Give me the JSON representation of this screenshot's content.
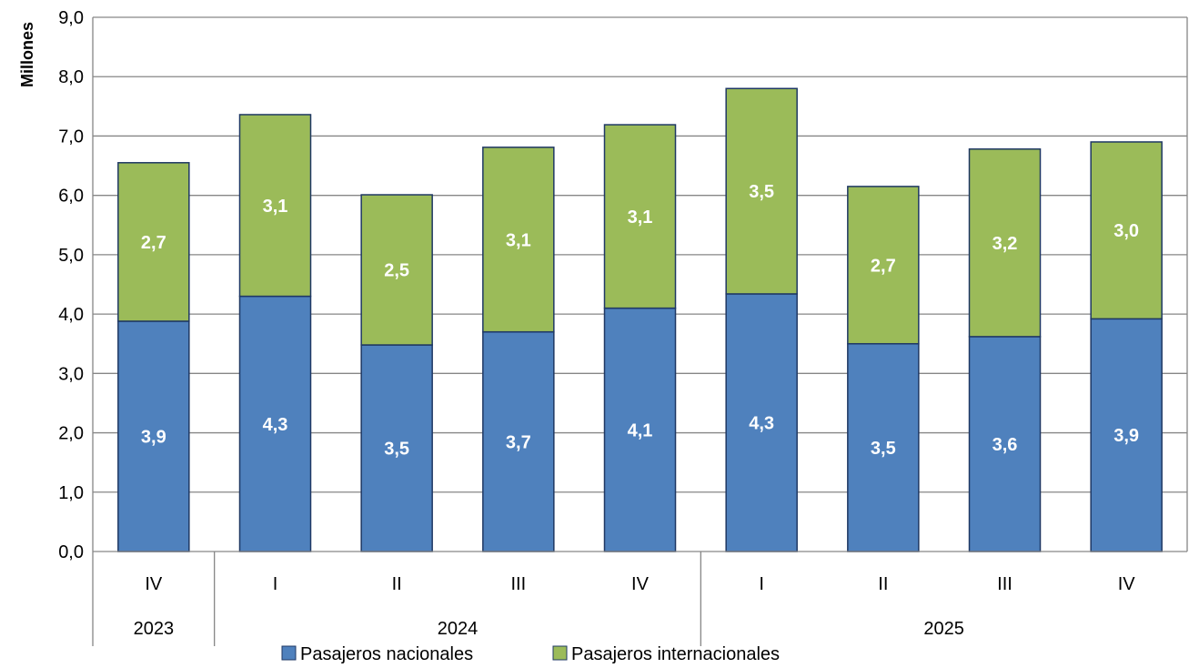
{
  "chart_data": {
    "type": "bar",
    "stacked": true,
    "title": "",
    "ylabel": "Millones",
    "ylim": [
      0,
      9
    ],
    "ytick_step": 1,
    "ytick_labels": [
      "0,0",
      "1,0",
      "2,0",
      "3,0",
      "4,0",
      "5,0",
      "6,0",
      "7,0",
      "8,0",
      "9,0"
    ],
    "grid": true,
    "legend_position": "bottom",
    "categories": [
      "IV",
      "I",
      "II",
      "III",
      "IV",
      "I",
      "II",
      "III",
      "IV"
    ],
    "year_groups": [
      {
        "label": "2023",
        "count": 1
      },
      {
        "label": "2024",
        "count": 4
      },
      {
        "label": "2025",
        "count": 4
      }
    ],
    "series": [
      {
        "name": "Pasajeros nacionales",
        "color": "#4f81bd",
        "values": [
          3.88,
          4.3,
          3.48,
          3.7,
          4.1,
          4.34,
          3.5,
          3.62,
          3.92
        ],
        "labels": [
          "3,9",
          "4,3",
          "3,5",
          "3,7",
          "4,1",
          "4,3",
          "3,5",
          "3,6",
          "3,9"
        ]
      },
      {
        "name": "Pasajeros internacionales",
        "color": "#9bbb59",
        "values": [
          2.67,
          3.06,
          2.53,
          3.11,
          3.09,
          3.46,
          2.65,
          3.16,
          2.98
        ],
        "labels": [
          "2,7",
          "3,1",
          "2,5",
          "3,1",
          "3,1",
          "3,5",
          "2,7",
          "3,2",
          "3,0"
        ]
      }
    ],
    "border_color": "#1f3864"
  }
}
